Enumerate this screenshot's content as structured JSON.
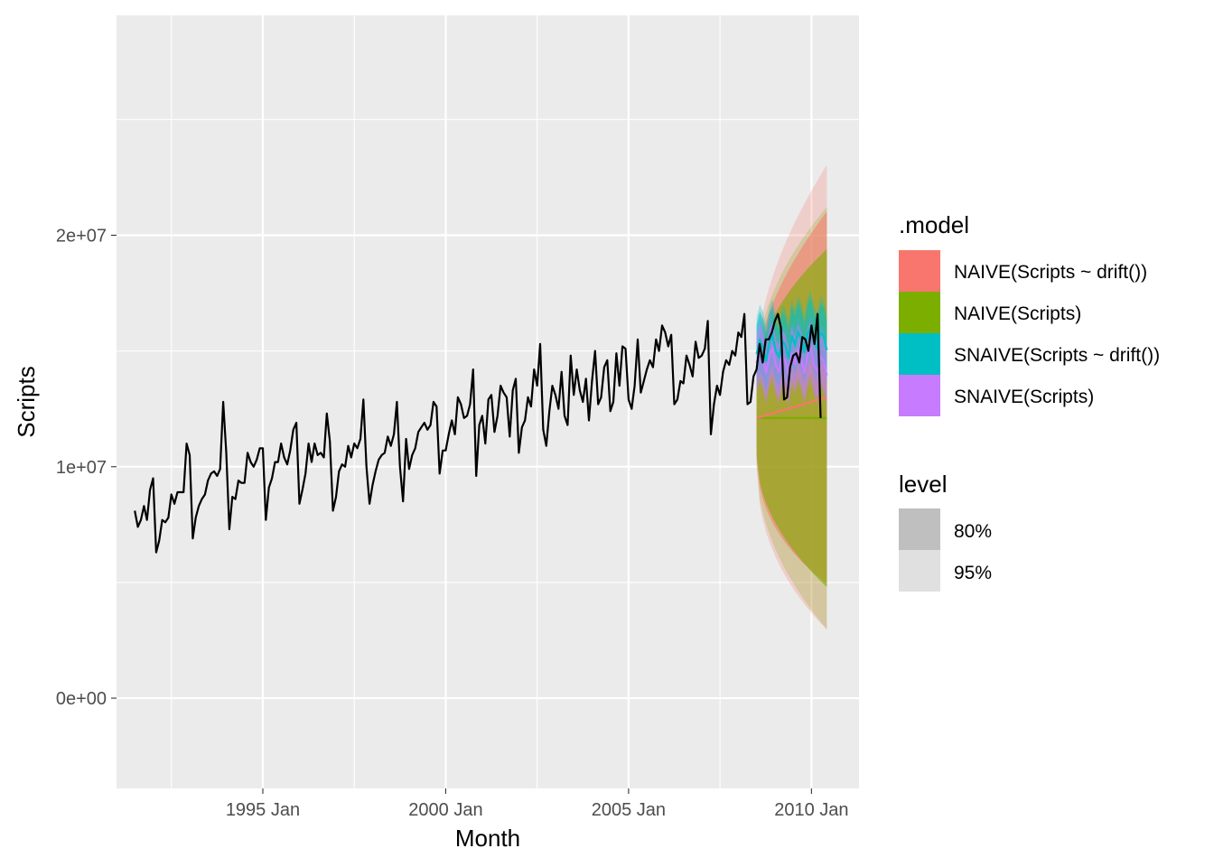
{
  "chart_data": {
    "type": "line",
    "xlabel": "Month",
    "ylabel": "Scripts",
    "xlim": [
      1991.0,
      2011.3
    ],
    "ylim": [
      -3900000,
      29500000
    ],
    "grid": true,
    "legend_placement": "right",
    "x_ticks": [
      {
        "value": 1995.0,
        "label": "1995 Jan"
      },
      {
        "value": 2000.0,
        "label": "2000 Jan"
      },
      {
        "value": 2005.0,
        "label": "2005 Jan"
      },
      {
        "value": 2010.0,
        "label": "2010 Jan"
      }
    ],
    "y_ticks": [
      {
        "value": 0,
        "label": "0e+00"
      },
      {
        "value": 10000000,
        "label": "1e+07"
      },
      {
        "value": 20000000,
        "label": "2e+07"
      }
    ],
    "history": {
      "start": 1991.5,
      "step": 0.0833333,
      "color": "#000000",
      "values": [
        8100000,
        7400000,
        7700000,
        8300000,
        7700000,
        9000000,
        9500000,
        6300000,
        6800000,
        7700000,
        7600000,
        7800000,
        8800000,
        8400000,
        8900000,
        8900000,
        8900000,
        11000000,
        10500000,
        6900000,
        7800000,
        8300000,
        8600000,
        8800000,
        9400000,
        9700000,
        9800000,
        9600000,
        9900000,
        12800000,
        10600000,
        7300000,
        8700000,
        8600000,
        9400000,
        9300000,
        9300000,
        10600000,
        10200000,
        10000000,
        10300000,
        10800000,
        10800000,
        7700000,
        9100000,
        9500000,
        10200000,
        10200000,
        11000000,
        10400000,
        10100000,
        10700000,
        11600000,
        11900000,
        8400000,
        9000000,
        9700000,
        11000000,
        10200000,
        11000000,
        10500000,
        10600000,
        10400000,
        12300000,
        11100000,
        8100000,
        8700000,
        9800000,
        10100000,
        10000000,
        10900000,
        10400000,
        11000000,
        10800000,
        11200000,
        12900000,
        10000000,
        8400000,
        9200000,
        9800000,
        10300000,
        10500000,
        10600000,
        11300000,
        10900000,
        11400000,
        12800000,
        10000000,
        8500000,
        11200000,
        9900000,
        10500000,
        10800000,
        11500000,
        11700000,
        11900000,
        11600000,
        11800000,
        12800000,
        12600000,
        9700000,
        10700000,
        10700000,
        11400000,
        12000000,
        11400000,
        13000000,
        12700000,
        12100000,
        12200000,
        12700000,
        14200000,
        9600000,
        11800000,
        12200000,
        11000000,
        12900000,
        13100000,
        11500000,
        12200000,
        13500000,
        13200000,
        13000000,
        11300000,
        13300000,
        13800000,
        10600000,
        11700000,
        12000000,
        13000000,
        12600000,
        14200000,
        13500000,
        15300000,
        11600000,
        10900000,
        12400000,
        13500000,
        13100000,
        12500000,
        14100000,
        12200000,
        11800000,
        14800000,
        13100000,
        14200000,
        13300000,
        12800000,
        13800000,
        12000000,
        13700000,
        15000000,
        12700000,
        13000000,
        14300000,
        14600000,
        12400000,
        12800000,
        14900000,
        13500000,
        15200000,
        15100000,
        12900000,
        12500000,
        13500000,
        15500000,
        13200000,
        13700000,
        14200000,
        14600000,
        14300000,
        15500000,
        15000000,
        16100000,
        15800000,
        15200000,
        15700000,
        12700000,
        12900000,
        13700000,
        13600000,
        14800000,
        14400000,
        13900000,
        15400000,
        14700000,
        14800000,
        15100000,
        16300000,
        11400000,
        12700000,
        13500000,
        13100000,
        14100000,
        14600000,
        14400000,
        15000000,
        14800000,
        15800000,
        15600000,
        16600000,
        12700000,
        12800000,
        13900000,
        14200000,
        15300000,
        14500000,
        15500000,
        15500000,
        15800000,
        16300000,
        16600000,
        16000000,
        12900000,
        13000000,
        14300000,
        14800000,
        14900000,
        14500000,
        15600000,
        15500000,
        15000000,
        16100000,
        15300000,
        16600000,
        12100000
      ],
      "last_value": 12100000
    },
    "forecast": {
      "start": 2008.5,
      "end": 2010.42,
      "base": 12100000,
      "drift_end": 13000000,
      "naive_sigma_start": 1550000,
      "naive_sigma_end": 7300000,
      "snaive_sigma": 1150000,
      "snaive_drift_sigma": 1250000
    },
    "series": [
      {
        "name": "NAIVE(Scripts ~ drift())",
        "color": "#F8766D"
      },
      {
        "name": "NAIVE(Scripts)",
        "color": "#7CAE00"
      },
      {
        "name": "SNAIVE(Scripts ~ drift())",
        "color": "#00BFC4"
      },
      {
        "name": "SNAIVE(Scripts)",
        "color": "#C77CFF"
      }
    ],
    "legend": {
      "model_title": ".model",
      "level_title": "level",
      "levels": [
        {
          "name": "80%",
          "color": "#BFBFBF"
        },
        {
          "name": "95%",
          "color": "#E0E0E0"
        }
      ]
    }
  }
}
